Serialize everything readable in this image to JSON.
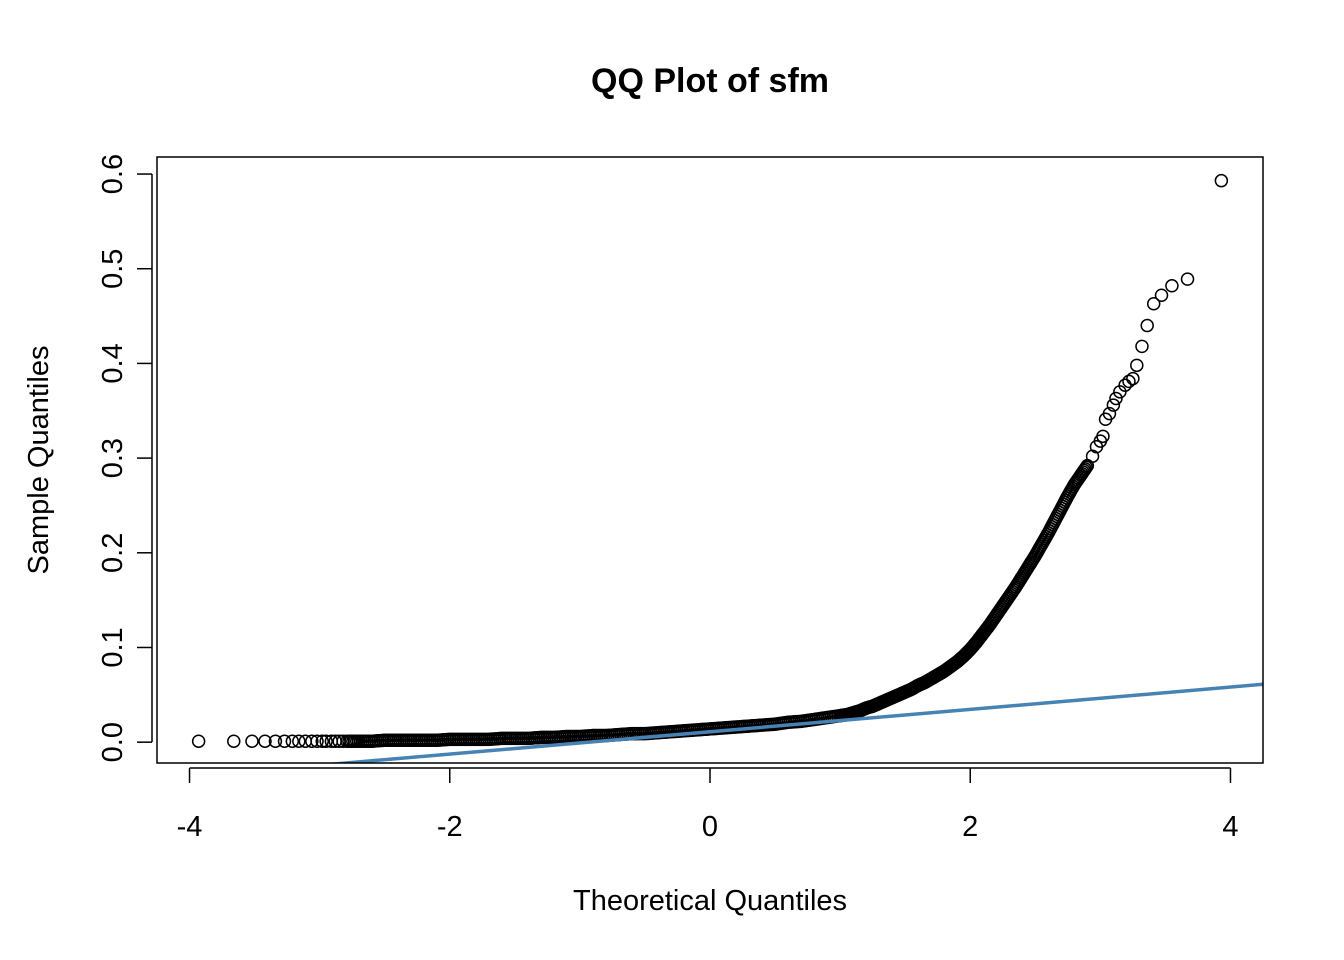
{
  "chart_data": {
    "type": "scatter",
    "title": "QQ Plot of sfm",
    "xlabel": "Theoretical Quantiles",
    "ylabel": "Sample Quantiles",
    "xlim": [
      -4.25,
      4.25
    ],
    "ylim": [
      -0.022,
      0.618
    ],
    "x_ticks": [
      -4,
      -2,
      0,
      2,
      4
    ],
    "y_ticks": [
      0.0,
      0.1,
      0.2,
      0.3,
      0.4,
      0.5,
      0.6
    ],
    "x_tick_labels": [
      "-4",
      "-2",
      "0",
      "2",
      "4"
    ],
    "y_tick_labels": [
      "0.0",
      "0.1",
      "0.2",
      "0.3",
      "0.4",
      "0.5",
      "0.6"
    ],
    "grid": false,
    "legend": "none",
    "reference_line": {
      "intercept": 0.011,
      "slope": 0.0118,
      "color": "#4682B4"
    },
    "point_color": "#000000",
    "points": [
      [
        -3.93,
        0.001
      ],
      [
        -3.66,
        0.001
      ],
      [
        -3.52,
        0.001
      ],
      [
        -3.42,
        0.001
      ],
      [
        -3.34,
        0.001
      ],
      [
        -3.27,
        0.001
      ],
      [
        -3.21,
        0.001
      ],
      [
        -3.16,
        0.001
      ],
      [
        -3.11,
        0.001
      ],
      [
        -3.06,
        0.001
      ],
      [
        -3.02,
        0.001
      ],
      [
        -2.98,
        0.001
      ],
      [
        -2.95,
        0.001
      ],
      [
        -2.91,
        0.001
      ],
      [
        -2.88,
        0.001
      ],
      [
        -2.85,
        0.001
      ],
      [
        -2.82,
        0.001
      ],
      [
        -2.79,
        0.001
      ],
      [
        -2.7,
        0.001
      ],
      [
        -2.6,
        0.001
      ],
      [
        -2.5,
        0.002
      ],
      [
        -2.4,
        0.002
      ],
      [
        -2.3,
        0.002
      ],
      [
        -2.2,
        0.002
      ],
      [
        -2.1,
        0.002
      ],
      [
        -2.0,
        0.003
      ],
      [
        -1.9,
        0.003
      ],
      [
        -1.8,
        0.003
      ],
      [
        -1.7,
        0.003
      ],
      [
        -1.6,
        0.004
      ],
      [
        -1.5,
        0.004
      ],
      [
        -1.4,
        0.004
      ],
      [
        -1.3,
        0.005
      ],
      [
        -1.2,
        0.005
      ],
      [
        -1.1,
        0.006
      ],
      [
        -1.0,
        0.006
      ],
      [
        -0.9,
        0.007
      ],
      [
        -0.8,
        0.007
      ],
      [
        -0.7,
        0.008
      ],
      [
        -0.6,
        0.009
      ],
      [
        -0.5,
        0.009
      ],
      [
        -0.4,
        0.01
      ],
      [
        -0.3,
        0.011
      ],
      [
        -0.2,
        0.012
      ],
      [
        -0.1,
        0.013
      ],
      [
        0.0,
        0.014
      ],
      [
        0.1,
        0.015
      ],
      [
        0.2,
        0.016
      ],
      [
        0.3,
        0.017
      ],
      [
        0.4,
        0.018
      ],
      [
        0.5,
        0.019
      ],
      [
        0.6,
        0.021
      ],
      [
        0.7,
        0.022
      ],
      [
        0.8,
        0.024
      ],
      [
        0.9,
        0.026
      ],
      [
        1.0,
        0.028
      ],
      [
        1.05,
        0.029
      ],
      [
        1.1,
        0.031
      ],
      [
        1.15,
        0.033
      ],
      [
        1.2,
        0.036
      ],
      [
        1.25,
        0.038
      ],
      [
        1.3,
        0.041
      ],
      [
        1.35,
        0.044
      ],
      [
        1.4,
        0.047
      ],
      [
        1.45,
        0.05
      ],
      [
        1.5,
        0.053
      ],
      [
        1.55,
        0.056
      ],
      [
        1.6,
        0.06
      ],
      [
        1.65,
        0.063
      ],
      [
        1.7,
        0.067
      ],
      [
        1.75,
        0.071
      ],
      [
        1.8,
        0.075
      ],
      [
        1.85,
        0.08
      ],
      [
        1.9,
        0.085
      ],
      [
        1.95,
        0.091
      ],
      [
        2.0,
        0.098
      ],
      [
        2.05,
        0.106
      ],
      [
        2.1,
        0.115
      ],
      [
        2.15,
        0.124
      ],
      [
        2.2,
        0.134
      ],
      [
        2.25,
        0.144
      ],
      [
        2.3,
        0.154
      ],
      [
        2.35,
        0.164
      ],
      [
        2.4,
        0.175
      ],
      [
        2.45,
        0.186
      ],
      [
        2.5,
        0.197
      ],
      [
        2.55,
        0.209
      ],
      [
        2.6,
        0.221
      ],
      [
        2.65,
        0.234
      ],
      [
        2.7,
        0.247
      ],
      [
        2.75,
        0.26
      ],
      [
        2.8,
        0.272
      ],
      [
        2.85,
        0.282
      ],
      [
        2.9,
        0.292
      ],
      [
        2.94,
        0.302
      ],
      [
        2.97,
        0.312
      ],
      [
        3.0,
        0.318
      ],
      [
        3.02,
        0.323
      ],
      [
        3.04,
        0.341
      ],
      [
        3.07,
        0.347
      ],
      [
        3.1,
        0.356
      ],
      [
        3.12,
        0.363
      ],
      [
        3.15,
        0.37
      ],
      [
        3.19,
        0.377
      ],
      [
        3.22,
        0.381
      ],
      [
        3.25,
        0.384
      ],
      [
        3.28,
        0.398
      ],
      [
        3.32,
        0.418
      ],
      [
        3.36,
        0.44
      ],
      [
        3.41,
        0.463
      ],
      [
        3.47,
        0.472
      ],
      [
        3.55,
        0.482
      ],
      [
        3.67,
        0.489
      ],
      [
        3.93,
        0.593
      ]
    ]
  }
}
